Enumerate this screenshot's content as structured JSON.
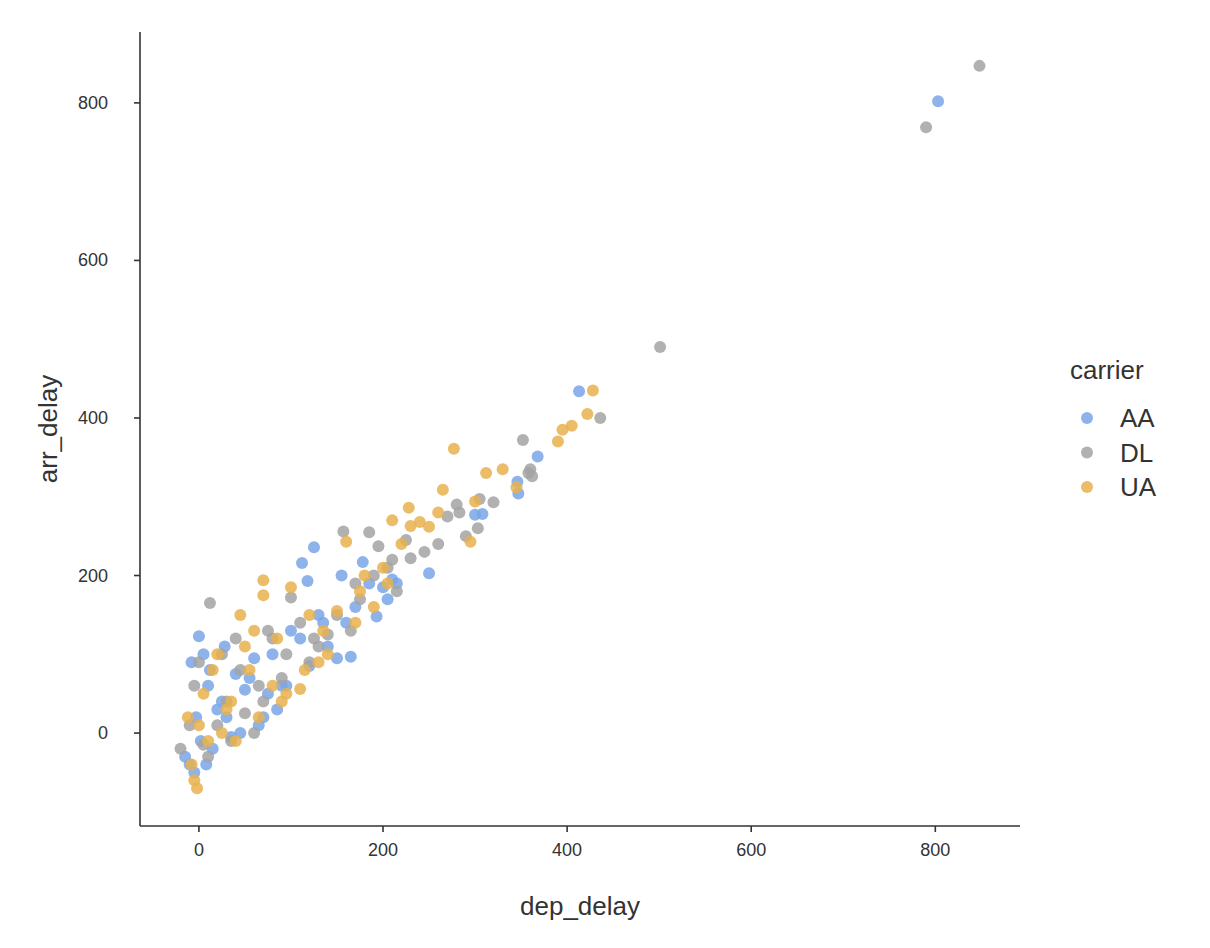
{
  "chart_data": {
    "type": "scatter",
    "x_label": "dep_delay",
    "y_label": "arr_delay",
    "legend_title": "carrier",
    "legend": "right",
    "grid": false,
    "xlim": [
      -64,
      892
    ],
    "ylim": [
      -118,
      890
    ],
    "xticks": [
      0,
      200,
      400,
      600,
      800
    ],
    "yticks": [
      0,
      200,
      400,
      600,
      800
    ],
    "series": [
      {
        "name": "AA",
        "color": "#7aa6e8",
        "marker": "circle",
        "x": [
          803,
          413,
          368,
          346,
          347,
          308,
          300,
          125,
          112,
          118,
          178,
          155,
          250,
          165,
          150,
          193,
          0,
          -10,
          -5,
          -15,
          5,
          10,
          20,
          30,
          40,
          50,
          60,
          70,
          80,
          90,
          100,
          110,
          130,
          140,
          170,
          185,
          200,
          210,
          215,
          120,
          95,
          85,
          65,
          45,
          35,
          25,
          15,
          2,
          -3,
          8,
          55,
          75,
          135,
          160,
          205,
          -8,
          12,
          28
        ],
        "values": [
          802,
          434,
          351,
          319,
          304,
          278,
          277,
          236,
          216,
          193,
          217,
          200,
          203,
          97,
          95,
          148,
          123,
          -40,
          -50,
          -30,
          100,
          60,
          30,
          20,
          75,
          55,
          95,
          20,
          100,
          60,
          130,
          120,
          150,
          110,
          160,
          190,
          185,
          195,
          190,
          85,
          60,
          30,
          10,
          0,
          -5,
          40,
          -20,
          -10,
          20,
          -40,
          70,
          50,
          140,
          140,
          170,
          90,
          80,
          110
        ]
      },
      {
        "name": "DL",
        "color": "#a3a3a3",
        "marker": "circle",
        "x": [
          848,
          790,
          501,
          436,
          352,
          360,
          358,
          362,
          320,
          305,
          303,
          280,
          270,
          283,
          157,
          185,
          12,
          195,
          230,
          225,
          100,
          75,
          60,
          -20,
          0,
          -5,
          10,
          20,
          30,
          40,
          50,
          65,
          80,
          90,
          110,
          120,
          130,
          140,
          150,
          165,
          175,
          190,
          205,
          215,
          245,
          260,
          290,
          -10,
          5,
          25,
          45,
          70,
          95,
          125,
          170,
          210,
          35
        ],
        "values": [
          847,
          769,
          490,
          400,
          372,
          335,
          330,
          326,
          293,
          297,
          260,
          290,
          275,
          280,
          256,
          255,
          165,
          237,
          222,
          245,
          172,
          130,
          0,
          -20,
          90,
          60,
          -30,
          10,
          40,
          120,
          25,
          60,
          120,
          70,
          140,
          90,
          110,
          125,
          150,
          130,
          170,
          200,
          210,
          180,
          230,
          240,
          250,
          10,
          -15,
          100,
          80,
          40,
          100,
          120,
          190,
          220,
          -10
        ]
      },
      {
        "name": "UA",
        "color": "#e8b24e",
        "marker": "circle",
        "x": [
          428,
          422,
          405,
          390,
          395,
          345,
          330,
          312,
          277,
          265,
          228,
          230,
          240,
          250,
          300,
          295,
          210,
          160,
          70,
          70,
          100,
          45,
          110,
          -2,
          -5,
          5,
          10,
          20,
          30,
          40,
          50,
          60,
          80,
          90,
          120,
          130,
          140,
          150,
          170,
          180,
          190,
          200,
          220,
          260,
          -12,
          15,
          25,
          35,
          55,
          65,
          85,
          95,
          115,
          135,
          175,
          205,
          -8,
          0
        ],
        "values": [
          435,
          405,
          390,
          370,
          385,
          312,
          335,
          330,
          361,
          309,
          286,
          263,
          268,
          262,
          294,
          243,
          270,
          243,
          194,
          175,
          185,
          150,
          56,
          -70,
          -60,
          50,
          -10,
          100,
          30,
          -10,
          110,
          130,
          60,
          40,
          150,
          90,
          100,
          155,
          140,
          200,
          160,
          210,
          240,
          280,
          20,
          80,
          0,
          40,
          80,
          20,
          120,
          50,
          80,
          130,
          180,
          190,
          -40,
          10
        ]
      }
    ]
  }
}
